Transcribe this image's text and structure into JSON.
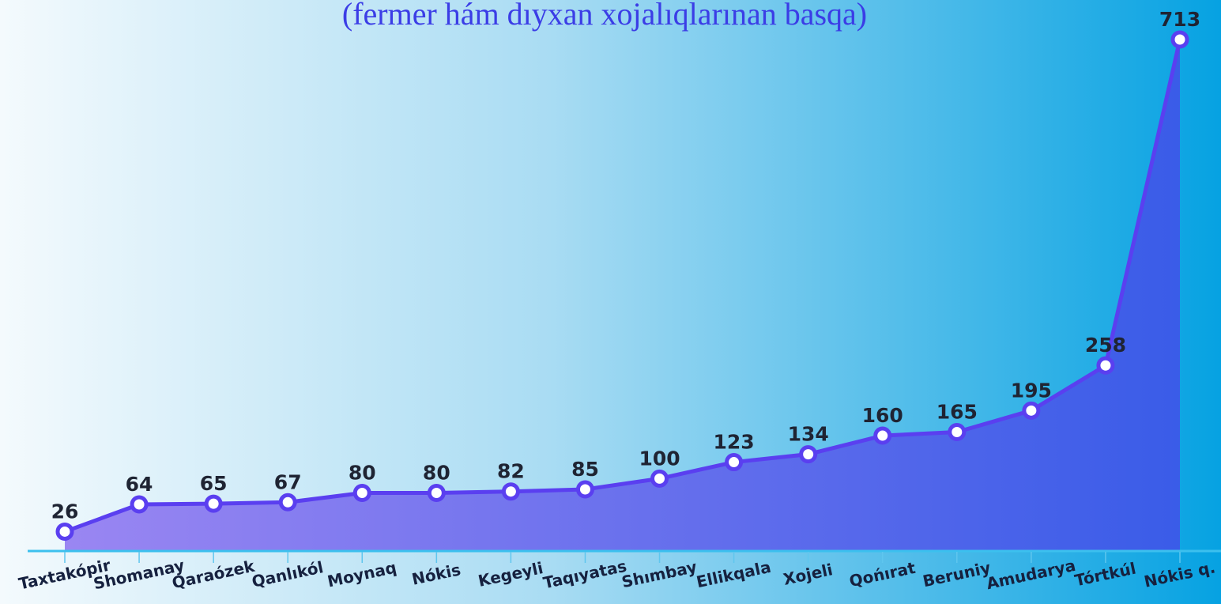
{
  "chart_data": {
    "type": "line",
    "subtitle": "(fermer hám dıyxan xojalıqlarınan basqa)",
    "categories": [
      "Taxtakópir",
      "Shomanay",
      "Qaraózek",
      "Qanlıkól",
      "Moynaq",
      "Nókis",
      "Kegeyli",
      "Taqıyatas",
      "Shımbay",
      "Ellikqala",
      "Xojeli",
      "Qońırat",
      "Beruniy",
      "Amudarya",
      "Tórtkúl",
      "Nókis q."
    ],
    "values": [
      26,
      64,
      65,
      67,
      80,
      80,
      82,
      85,
      100,
      123,
      134,
      160,
      165,
      195,
      258,
      713
    ],
    "color": "#5a3ff0"
  }
}
